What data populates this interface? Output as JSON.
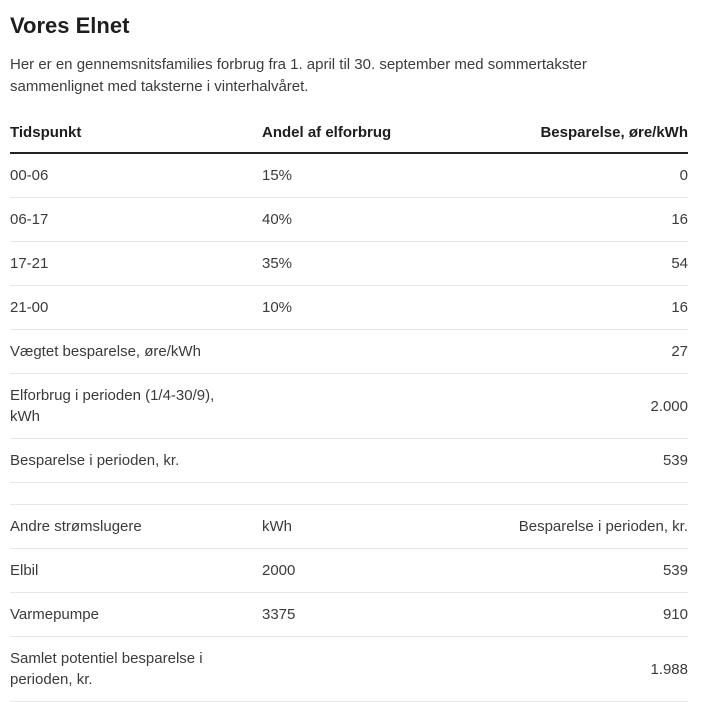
{
  "page": {
    "title": "Vores Elnet",
    "subtitle": "Her er en gennemsnitsfamilies forbrug fra 1. april til 30. september med sommertakster sammenlignet med taksterne i vinterhalvåret."
  },
  "colors": {
    "background": "#ffffff",
    "heading_text": "#1e1e1e",
    "body_text": "#3b3b3b",
    "divider": "#e7e7e7",
    "header_rule": "#222222"
  },
  "consumption_table": {
    "headers": {
      "time": "Tidspunkt",
      "share": "Andel af elforbrug",
      "saving": "Besparelse, øre/kWh"
    },
    "rows": [
      {
        "label": "00-06",
        "share": "15%",
        "saving": "0"
      },
      {
        "label": "06-17",
        "share": "40%",
        "saving": "16"
      },
      {
        "label": "17-21",
        "share": "35%",
        "saving": "54"
      },
      {
        "label": "21-00",
        "share": "10%",
        "saving": "16"
      },
      {
        "label": "Vægtet besparelse, øre/kWh",
        "share": "",
        "saving": "27"
      },
      {
        "label": "Elforbrug i perioden (1/4-30/9), kWh",
        "share": "",
        "saving": "2.000"
      },
      {
        "label": "Besparelse i perioden, kr.",
        "share": "",
        "saving": "539"
      }
    ]
  },
  "appliances_table": {
    "headers": {
      "name": "Andre strømslugere",
      "kwh": "kWh",
      "saving": "Besparelse i perioden, kr."
    },
    "rows": [
      {
        "label": "Elbil",
        "kwh": "2000",
        "saving": "539"
      },
      {
        "label": "Varmepumpe",
        "kwh": "3375",
        "saving": "910"
      },
      {
        "label": "Samlet potentiel besparelse i perioden, kr.",
        "kwh": "",
        "saving": "1.988"
      }
    ]
  }
}
